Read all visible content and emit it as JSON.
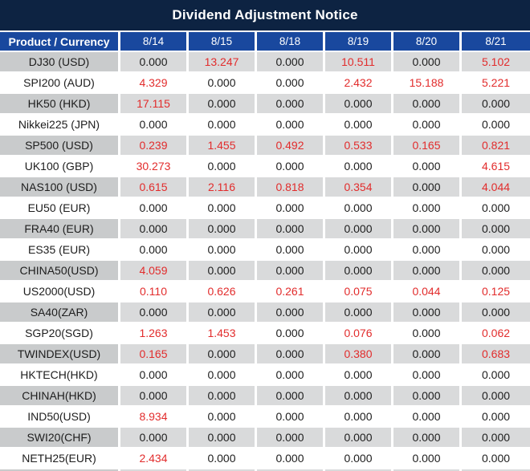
{
  "title": "Dividend Adjustment Notice",
  "table": {
    "product_header": "Product / Currency",
    "date_headers": [
      "8/14",
      "8/15",
      "8/18",
      "8/19",
      "8/20",
      "8/21"
    ],
    "zero_value": "0.000",
    "rows": [
      {
        "product": "DJ30 (USD)",
        "values": [
          "0.000",
          "13.247",
          "0.000",
          "10.511",
          "0.000",
          "5.102"
        ]
      },
      {
        "product": "SPI200 (AUD)",
        "values": [
          "4.329",
          "0.000",
          "0.000",
          "2.432",
          "15.188",
          "5.221"
        ]
      },
      {
        "product": "HK50 (HKD)",
        "values": [
          "17.115",
          "0.000",
          "0.000",
          "0.000",
          "0.000",
          "0.000"
        ]
      },
      {
        "product": "Nikkei225 (JPN)",
        "values": [
          "0.000",
          "0.000",
          "0.000",
          "0.000",
          "0.000",
          "0.000"
        ]
      },
      {
        "product": "SP500 (USD)",
        "values": [
          "0.239",
          "1.455",
          "0.492",
          "0.533",
          "0.165",
          "0.821"
        ]
      },
      {
        "product": "UK100 (GBP)",
        "values": [
          "30.273",
          "0.000",
          "0.000",
          "0.000",
          "0.000",
          "4.615"
        ]
      },
      {
        "product": "NAS100 (USD)",
        "values": [
          "0.615",
          "2.116",
          "0.818",
          "0.354",
          "0.000",
          "4.044"
        ]
      },
      {
        "product": "EU50 (EUR)",
        "values": [
          "0.000",
          "0.000",
          "0.000",
          "0.000",
          "0.000",
          "0.000"
        ]
      },
      {
        "product": "FRA40 (EUR)",
        "values": [
          "0.000",
          "0.000",
          "0.000",
          "0.000",
          "0.000",
          "0.000"
        ]
      },
      {
        "product": "ES35 (EUR)",
        "values": [
          "0.000",
          "0.000",
          "0.000",
          "0.000",
          "0.000",
          "0.000"
        ]
      },
      {
        "product": "CHINA50(USD)",
        "values": [
          "4.059",
          "0.000",
          "0.000",
          "0.000",
          "0.000",
          "0.000"
        ]
      },
      {
        "product": "US2000(USD)",
        "values": [
          "0.110",
          "0.626",
          "0.261",
          "0.075",
          "0.044",
          "0.125"
        ]
      },
      {
        "product": "SA40(ZAR)",
        "values": [
          "0.000",
          "0.000",
          "0.000",
          "0.000",
          "0.000",
          "0.000"
        ]
      },
      {
        "product": "SGP20(SGD)",
        "values": [
          "1.263",
          "1.453",
          "0.000",
          "0.076",
          "0.000",
          "0.062"
        ]
      },
      {
        "product": "TWINDEX(USD)",
        "values": [
          "0.165",
          "0.000",
          "0.000",
          "0.380",
          "0.000",
          "0.683"
        ]
      },
      {
        "product": "HKTECH(HKD)",
        "values": [
          "0.000",
          "0.000",
          "0.000",
          "0.000",
          "0.000",
          "0.000"
        ]
      },
      {
        "product": "CHINAH(HKD)",
        "values": [
          "0.000",
          "0.000",
          "0.000",
          "0.000",
          "0.000",
          "0.000"
        ]
      },
      {
        "product": "IND50(USD)",
        "values": [
          "8.934",
          "0.000",
          "0.000",
          "0.000",
          "0.000",
          "0.000"
        ]
      },
      {
        "product": "SWI20(CHF)",
        "values": [
          "0.000",
          "0.000",
          "0.000",
          "0.000",
          "0.000",
          "0.000"
        ]
      },
      {
        "product": "NETH25(EUR)",
        "values": [
          "2.434",
          "0.000",
          "0.000",
          "0.000",
          "0.000",
          "0.000"
        ]
      }
    ]
  },
  "colors": {
    "title_bar": "#0d2342",
    "header_bar": "#19489e",
    "row_stripe_gray": "#d9dadb",
    "row_stripe_first_col_gray": "#c9cbcc",
    "nonzero_value_red": "#e22c2c",
    "zero_value_black": "#1d1d1d",
    "separator_white": "#ffffff"
  }
}
